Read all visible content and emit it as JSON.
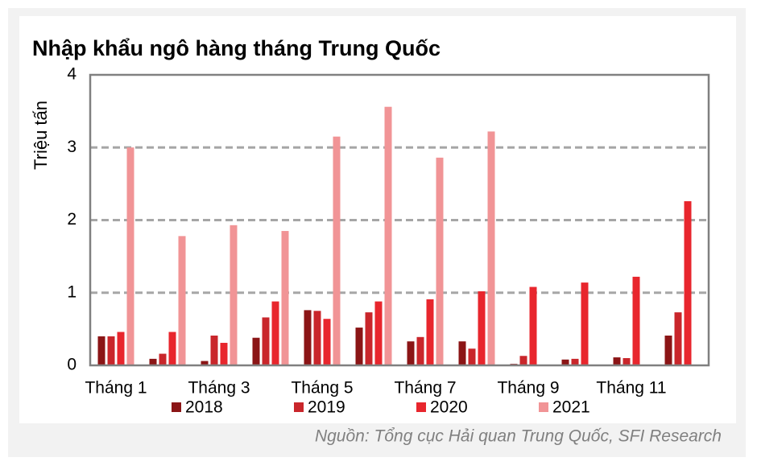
{
  "chart_data": {
    "type": "bar",
    "title": "Nhập khẩu ngô hàng tháng Trung Quốc",
    "y_label": "Triệu tấn",
    "source": "Nguồn: Tổng cục Hải quan Trung Quốc, SFI Research",
    "categories": [
      "Tháng 1",
      null,
      "Tháng 3",
      null,
      "Tháng 5",
      null,
      "Tháng 7",
      null,
      "Tháng 9",
      null,
      "Tháng 11",
      null
    ],
    "series": [
      {
        "name": "2018",
        "color": "#8b1516",
        "values": [
          0.4,
          0.09,
          0.06,
          0.38,
          0.76,
          0.52,
          0.33,
          0.33,
          0.02,
          0.08,
          0.11,
          0.41
        ]
      },
      {
        "name": "2019",
        "color": "#c9262b",
        "values": [
          0.4,
          0.16,
          0.41,
          0.66,
          0.75,
          0.73,
          0.39,
          0.23,
          0.13,
          0.09,
          0.1,
          0.73
        ]
      },
      {
        "name": "2020",
        "color": "#e8262d",
        "values": [
          0.46,
          0.46,
          0.31,
          0.88,
          0.64,
          0.88,
          0.91,
          1.02,
          1.08,
          1.14,
          1.22,
          2.26
        ]
      },
      {
        "name": "2021",
        "color": "#f19496",
        "values": [
          3.0,
          1.78,
          1.93,
          1.85,
          3.15,
          3.56,
          2.86,
          3.22,
          null,
          null,
          null,
          null
        ]
      }
    ],
    "ylim": [
      0,
      4
    ],
    "yticks": [
      0,
      1,
      2,
      3,
      4
    ],
    "grid": true
  }
}
